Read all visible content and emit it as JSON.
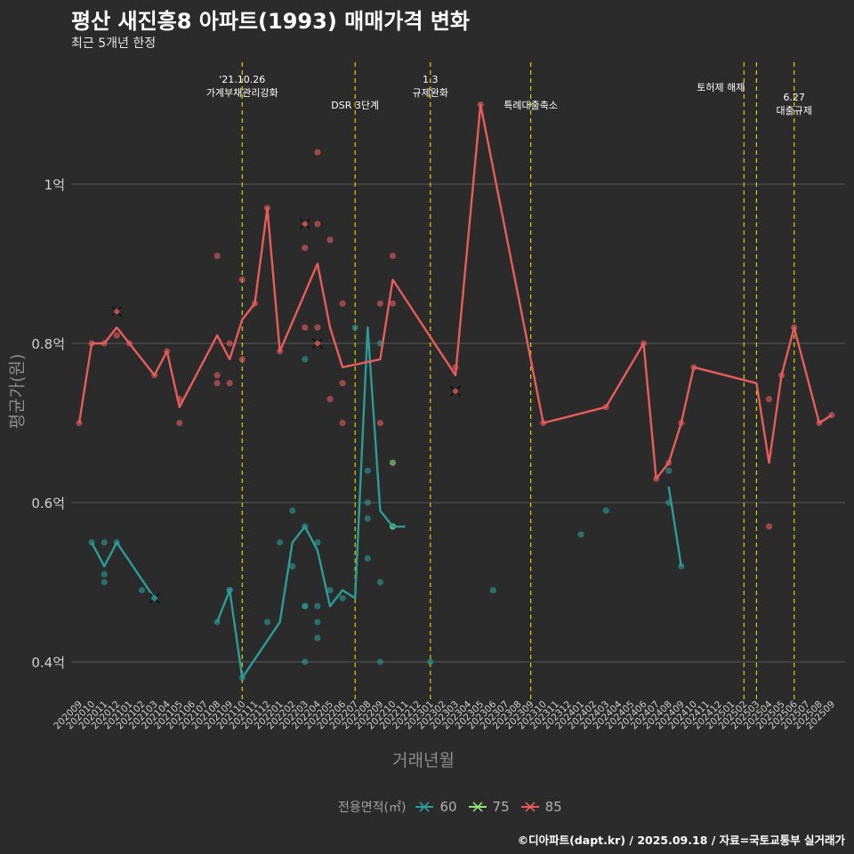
{
  "title": "평산 새진흥8 아파트(1993) 매매가격 변화",
  "subtitle": "최근 5개년 한정",
  "caption": "©디아파트(dapt.kr) / 2025.09.18 / 자료=국토교통부 실거래가",
  "colors": {
    "background": "#2b2b2b",
    "grid": "#5a5a5a",
    "event_line": "#d4d400",
    "s60": "#2b9c98",
    "s75": "#8ee07a",
    "s85": "#e85c5c"
  },
  "chart_data": {
    "type": "line",
    "xlabel": "거래년월",
    "ylabel": "평균가(원)",
    "x_ticks": [
      "202009",
      "202010",
      "202011",
      "202012",
      "202101",
      "202102",
      "202103",
      "202104",
      "202105",
      "202106",
      "202107",
      "202108",
      "202109",
      "202110",
      "202111",
      "202112",
      "202201",
      "202202",
      "202203",
      "202204",
      "202205",
      "202206",
      "202207",
      "202208",
      "202209",
      "202210",
      "202211",
      "202212",
      "202301",
      "202302",
      "202303",
      "202304",
      "202305",
      "202306",
      "202307",
      "202308",
      "202309",
      "202310",
      "202311",
      "202312",
      "202401",
      "202402",
      "202403",
      "202404",
      "202405",
      "202406",
      "202407",
      "202408",
      "202409",
      "202410",
      "202411",
      "202412",
      "202501",
      "202502",
      "202503",
      "202504",
      "202505",
      "202506",
      "202507",
      "202508",
      "202509"
    ],
    "y_ticks": [
      {
        "value": 0.4,
        "label": "0.4억"
      },
      {
        "value": 0.6,
        "label": "0.6억"
      },
      {
        "value": 0.8,
        "label": "0.8억"
      },
      {
        "value": 1.0,
        "label": "1억"
      }
    ],
    "ylim": [
      0.35,
      1.1
    ],
    "unit": "억원",
    "legend": {
      "title": "전용면적(㎡)",
      "position": "bottom"
    },
    "events": [
      {
        "x": "202110",
        "label": "'21.10.26\n가계부채관리강화"
      },
      {
        "x": "202207",
        "label": "DSR 3단계"
      },
      {
        "x": "202301",
        "label": "1.3\n규제완화"
      },
      {
        "x": "202309",
        "label": "특례대출축소"
      },
      {
        "x": "202502",
        "label": "토허제 해제"
      },
      {
        "x": "202503",
        "label": ""
      },
      {
        "x": "202506",
        "label": "6.27\n대출규제"
      }
    ],
    "series": [
      {
        "name": "60",
        "color": "#2b9c98",
        "lines": [
          [
            [
              "202010",
              0.55
            ],
            [
              "202011",
              0.52
            ],
            [
              "202012",
              0.55
            ],
            [
              "202103",
              0.48
            ]
          ],
          [
            [
              "202108",
              0.45
            ],
            [
              "202109",
              0.49
            ],
            [
              "202110",
              0.38
            ],
            [
              "202201",
              0.45
            ],
            [
              "202202",
              0.55
            ],
            [
              "202203",
              0.57
            ],
            [
              "202204",
              0.54
            ],
            [
              "202205",
              0.47
            ],
            [
              "202206",
              0.49
            ],
            [
              "202207",
              0.48
            ],
            [
              "202208",
              0.82
            ],
            [
              "202209",
              0.59
            ],
            [
              "202210",
              0.57
            ],
            [
              "202211",
              0.57
            ]
          ],
          [
            [
              "202408",
              0.62
            ],
            [
              "202409",
              0.52
            ]
          ]
        ],
        "points": [
          [
            "202010",
            0.55
          ],
          [
            "202011",
            0.55
          ],
          [
            "202011",
            0.51
          ],
          [
            "202011",
            0.5
          ],
          [
            "202012",
            0.55
          ],
          [
            "202102",
            0.49
          ],
          [
            "202103",
            0.48
          ],
          [
            "202108",
            0.45
          ],
          [
            "202109",
            0.49
          ],
          [
            "202109",
            0.49
          ],
          [
            "202110",
            0.38
          ],
          [
            "202112",
            0.45
          ],
          [
            "202201",
            0.55
          ],
          [
            "202202",
            0.59
          ],
          [
            "202202",
            0.52
          ],
          [
            "202203",
            0.78
          ],
          [
            "202203",
            0.57
          ],
          [
            "202203",
            0.47
          ],
          [
            "202203",
            0.47
          ],
          [
            "202203",
            0.4
          ],
          [
            "202204",
            0.55
          ],
          [
            "202204",
            0.47
          ],
          [
            "202204",
            0.45
          ],
          [
            "202204",
            0.43
          ],
          [
            "202205",
            0.49
          ],
          [
            "202206",
            0.48
          ],
          [
            "202207",
            0.82
          ],
          [
            "202208",
            0.64
          ],
          [
            "202208",
            0.6
          ],
          [
            "202208",
            0.58
          ],
          [
            "202208",
            0.53
          ],
          [
            "202209",
            0.8
          ],
          [
            "202209",
            0.5
          ],
          [
            "202209",
            0.4
          ],
          [
            "202210",
            0.57
          ],
          [
            "202301",
            0.4
          ],
          [
            "202306",
            0.49
          ],
          [
            "202401",
            0.56
          ],
          [
            "202403",
            0.59
          ],
          [
            "202408",
            0.64
          ],
          [
            "202408",
            0.6
          ],
          [
            "202409",
            0.52
          ]
        ],
        "crosses": [
          [
            "202103",
            0.48
          ]
        ]
      },
      {
        "name": "75",
        "color": "#8ee07a",
        "lines": [],
        "points": [
          [
            "202210",
            0.65
          ],
          [
            "202210",
            0.57
          ]
        ],
        "crosses": []
      },
      {
        "name": "85",
        "color": "#e85c5c",
        "lines": [
          [
            [
              "202009",
              0.7
            ],
            [
              "202010",
              0.8
            ],
            [
              "202011",
              0.8
            ],
            [
              "202012",
              0.82
            ],
            [
              "202101",
              0.8
            ],
            [
              "202103",
              0.76
            ],
            [
              "202104",
              0.79
            ],
            [
              "202105",
              0.72
            ],
            [
              "202108",
              0.81
            ],
            [
              "202109",
              0.78
            ],
            [
              "202110",
              0.83
            ],
            [
              "202111",
              0.85
            ],
            [
              "202112",
              0.97
            ],
            [
              "202201",
              0.79
            ],
            [
              "202204",
              0.9
            ],
            [
              "202205",
              0.82
            ],
            [
              "202206",
              0.77
            ],
            [
              "202209",
              0.78
            ],
            [
              "202210",
              0.88
            ],
            [
              "202303",
              0.76
            ],
            [
              "202305",
              1.1
            ],
            [
              "202310",
              0.7
            ],
            [
              "202403",
              0.72
            ],
            [
              "202406",
              0.8
            ],
            [
              "202407",
              0.63
            ],
            [
              "202408",
              0.65
            ],
            [
              "202409",
              0.7
            ],
            [
              "202410",
              0.77
            ],
            [
              "202503",
              0.75
            ],
            [
              "202504",
              0.65
            ],
            [
              "202505",
              0.76
            ],
            [
              "202506",
              0.82
            ],
            [
              "202508",
              0.7
            ],
            [
              "202509",
              0.71
            ]
          ]
        ],
        "points": [
          [
            "202009",
            0.7
          ],
          [
            "202010",
            0.8
          ],
          [
            "202011",
            0.8
          ],
          [
            "202012",
            0.81
          ],
          [
            "202101",
            0.8
          ],
          [
            "202103",
            0.76
          ],
          [
            "202104",
            0.79
          ],
          [
            "202105",
            0.73
          ],
          [
            "202105",
            0.7
          ],
          [
            "202108",
            0.91
          ],
          [
            "202108",
            0.76
          ],
          [
            "202108",
            0.75
          ],
          [
            "202109",
            0.8
          ],
          [
            "202109",
            0.75
          ],
          [
            "202110",
            0.88
          ],
          [
            "202110",
            0.78
          ],
          [
            "202111",
            0.85
          ],
          [
            "202112",
            0.97
          ],
          [
            "202201",
            0.79
          ],
          [
            "202203",
            0.92
          ],
          [
            "202203",
            0.82
          ],
          [
            "202204",
            1.04
          ],
          [
            "202204",
            0.95
          ],
          [
            "202204",
            0.82
          ],
          [
            "202205",
            0.93
          ],
          [
            "202205",
            0.73
          ],
          [
            "202206",
            0.85
          ],
          [
            "202206",
            0.75
          ],
          [
            "202206",
            0.7
          ],
          [
            "202209",
            0.85
          ],
          [
            "202209",
            0.7
          ],
          [
            "202210",
            0.91
          ],
          [
            "202210",
            0.85
          ],
          [
            "202303",
            0.77
          ],
          [
            "202305",
            1.1
          ],
          [
            "202310",
            0.7
          ],
          [
            "202403",
            0.72
          ],
          [
            "202406",
            0.8
          ],
          [
            "202407",
            0.63
          ],
          [
            "202408",
            0.65
          ],
          [
            "202409",
            0.7
          ],
          [
            "202410",
            0.77
          ],
          [
            "202504",
            0.73
          ],
          [
            "202504",
            0.57
          ],
          [
            "202505",
            0.76
          ],
          [
            "202506",
            0.82
          ],
          [
            "202508",
            0.7
          ],
          [
            "202509",
            0.71
          ]
        ],
        "crosses": [
          [
            "202012",
            0.84
          ],
          [
            "202203",
            0.95
          ],
          [
            "202204",
            0.8
          ],
          [
            "202303",
            0.74
          ]
        ]
      }
    ]
  }
}
